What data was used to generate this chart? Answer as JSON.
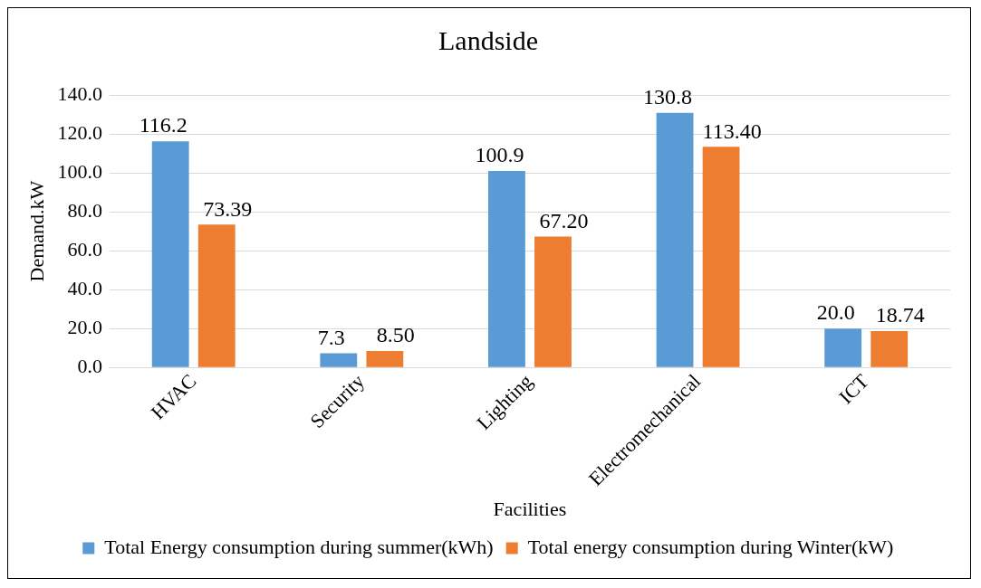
{
  "chart_data": {
    "type": "bar",
    "title": "Landside",
    "xlabel": "Facilities",
    "ylabel": "Demand.kW",
    "categories": [
      "HVAC",
      "Security",
      "Lighting",
      "Electromechanical",
      "ICT"
    ],
    "series": [
      {
        "name": "Total Energy consumption during summer(kWh)",
        "color": "#5b9bd5",
        "values": [
          116.2,
          7.3,
          100.9,
          130.8,
          20.0
        ],
        "value_labels": [
          "116.2",
          "7.3",
          "100.9",
          "130.8",
          "20.0"
        ]
      },
      {
        "name": "Total energy consumption during Winter(kW)",
        "color": "#ed7d31",
        "values": [
          73.39,
          8.5,
          67.2,
          113.4,
          18.74
        ],
        "value_labels": [
          "73.39",
          "8.50",
          "67.20",
          "113.40",
          "18.74"
        ]
      }
    ],
    "ylim": [
      0,
      140
    ],
    "yticks": [
      {
        "value": 0,
        "label": "0.0"
      },
      {
        "value": 20,
        "label": "20.0"
      },
      {
        "value": 40,
        "label": "40.0"
      },
      {
        "value": 60,
        "label": "60.0"
      },
      {
        "value": 80,
        "label": "80.0"
      },
      {
        "value": 100,
        "label": "100.0"
      },
      {
        "value": 120,
        "label": "120.0"
      },
      {
        "value": 140,
        "label": "140.0"
      }
    ],
    "grid": "y",
    "legend": "bottom"
  }
}
